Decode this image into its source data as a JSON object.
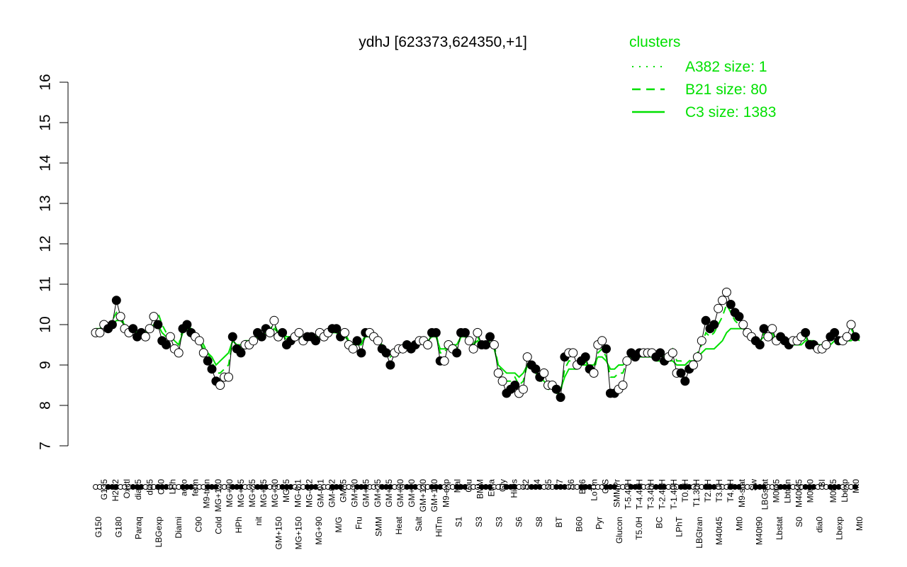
{
  "chart_data": {
    "type": "line",
    "title": "ydhJ [623373,624350,+1]",
    "ylim": [
      7,
      16
    ],
    "y_ticks": [
      7,
      8,
      9,
      10,
      11,
      12,
      13,
      14,
      15,
      16
    ],
    "x_labels_top": [
      "G135",
      "H2O2",
      "Oxctl",
      "dia15",
      "dia5",
      "C30",
      "LPh",
      "aero",
      "ferm",
      "M9-tran",
      "MG+120",
      "MG+60",
      "MG+45",
      "MG+25",
      "MG+15",
      "MG+10",
      "MG+5",
      "MG-0.1",
      "MG-0.2",
      "GM-0.1",
      "GM-0.2",
      "GM+5",
      "GM+10",
      "GM+15",
      "GM+25",
      "GM+45",
      "GM+60",
      "GM+90",
      "GM+120",
      "GM+150",
      "M9-exp",
      "Mal",
      "Glu",
      "BMM",
      "Etha",
      "Gly",
      "HiOs",
      "S2",
      "S4",
      "S5",
      "S7",
      "S6",
      "B36",
      "LoTm",
      "G/S",
      "SMMPr",
      "T-5.40H",
      "T-4.40H",
      "T-3.40H",
      "T-2.40H",
      "T-1.40H",
      "T0.0H",
      "T1.30H",
      "T2.0H",
      "T3.0H",
      "T4.0H",
      "M9-stat",
      "Sw",
      "LBGstat",
      "M0t45",
      "Lbtran",
      "M40t45",
      "M0t90",
      "BI",
      "M0t45",
      "Lbexp",
      "Mt0"
    ],
    "x_labels_bottom": [
      "G150",
      "G180",
      "Paraq",
      "LBGexp",
      "Diami",
      "C90",
      "Cold",
      "HPh",
      "nit",
      "GM+150",
      "MG+150",
      "MG+90",
      "M/G",
      "Fru",
      "SMM",
      "Heat",
      "Salt",
      "HiTm",
      "S1",
      "S3",
      "S3",
      "S6",
      "S8",
      "BT",
      "B60",
      "Pyr",
      "Glucon",
      "T5.0H",
      "BC",
      "LPhT",
      "LBGtran",
      "M40t45",
      "Mt0",
      "M40t90",
      "Lbstat",
      "S0",
      "dia0",
      "Lbexp",
      "Mt0"
    ],
    "series": [
      {
        "name": "",
        "values": [
          9.8,
          9.8,
          10.0,
          9.9,
          10.0,
          10.6,
          10.2,
          9.9,
          9.8,
          9.9,
          9.7,
          9.8,
          9.7,
          9.9,
          10.2,
          10.0,
          9.6,
          9.5,
          9.7,
          9.4,
          9.3,
          9.9,
          10.0,
          9.8,
          9.7,
          9.6,
          9.3,
          9.1,
          8.9,
          8.6,
          8.5,
          8.7,
          8.7,
          9.7,
          9.4,
          9.3,
          9.5,
          9.5,
          9.6,
          9.8,
          9.7,
          9.9,
          9.8,
          10.1,
          9.7,
          9.8,
          9.5,
          9.6,
          9.7,
          9.8,
          9.6,
          9.7,
          9.7,
          9.6,
          9.8,
          9.7,
          9.8,
          9.9,
          9.9,
          9.7,
          9.8,
          9.5,
          9.4,
          9.6,
          9.3,
          9.8,
          9.8,
          9.7,
          9.6,
          9.4,
          9.3,
          9.0,
          9.3,
          9.4,
          9.4,
          9.5,
          9.4,
          9.5,
          9.6,
          9.6,
          9.5,
          9.8,
          9.8,
          9.1,
          9.1,
          9.5,
          9.4,
          9.3,
          9.8,
          9.8,
          9.6,
          9.4,
          9.8,
          9.5,
          9.5,
          9.7,
          9.5,
          8.8,
          8.6,
          8.3,
          8.4,
          8.5,
          8.3,
          8.4,
          9.2,
          9.0,
          8.9,
          8.7,
          8.8,
          8.5,
          8.5,
          8.4,
          8.2,
          9.2,
          9.3,
          9.3,
          9.0,
          9.1,
          9.2,
          8.9,
          8.8,
          9.5,
          9.6,
          9.4,
          8.3,
          8.3,
          8.4,
          8.5,
          9.1,
          9.3,
          9.2,
          9.3,
          9.3,
          9.3,
          9.3,
          9.2,
          9.3,
          9.1,
          9.2,
          9.3,
          8.8,
          8.8,
          8.6,
          8.9,
          9.0,
          9.2,
          9.6,
          10.1,
          9.9,
          10.0,
          10.4,
          10.6,
          10.8,
          10.5,
          10.3,
          10.2,
          10.0,
          9.8,
          9.7,
          9.6,
          9.5,
          9.9,
          9.7,
          9.9,
          9.6,
          9.7,
          9.6,
          9.5,
          9.6,
          9.6,
          9.7,
          9.8,
          9.5,
          9.5,
          9.4,
          9.4,
          9.5,
          9.7,
          9.8,
          9.6,
          9.6,
          9.7,
          10.0,
          9.7
        ]
      },
      {
        "name": "C3 size: 1383",
        "values": [
          9.9,
          9.9,
          10.0,
          10.0,
          10.0,
          10.1,
          10.1,
          10.0,
          9.9,
          9.9,
          9.8,
          9.8,
          9.8,
          9.9,
          10.0,
          10.0,
          9.8,
          9.7,
          9.7,
          9.6,
          9.5,
          9.8,
          9.9,
          9.8,
          9.7,
          9.6,
          9.4,
          9.3,
          9.2,
          9.0,
          9.1,
          9.2,
          9.3,
          9.6,
          9.5,
          9.5,
          9.6,
          9.6,
          9.6,
          9.7,
          9.7,
          9.8,
          9.8,
          9.9,
          9.8,
          9.8,
          9.7,
          9.7,
          9.7,
          9.7,
          9.6,
          9.6,
          9.7,
          9.7,
          9.7,
          9.7,
          9.7,
          9.8,
          9.8,
          9.7,
          9.7,
          9.6,
          9.5,
          9.5,
          9.5,
          9.7,
          9.7,
          9.7,
          9.6,
          9.5,
          9.4,
          9.3,
          9.4,
          9.4,
          9.5,
          9.5,
          9.5,
          9.5,
          9.6,
          9.6,
          9.6,
          9.7,
          9.7,
          9.4,
          9.4,
          9.5,
          9.5,
          9.5,
          9.7,
          9.7,
          9.6,
          9.5,
          9.6,
          9.5,
          9.5,
          9.5,
          9.4,
          9.0,
          8.9,
          8.8,
          8.8,
          8.8,
          8.7,
          8.8,
          9.0,
          8.9,
          8.8,
          8.7,
          8.6,
          8.5,
          8.5,
          8.4,
          8.4,
          8.7,
          8.9,
          8.9,
          8.9,
          9.0,
          9.0,
          9.0,
          9.0,
          9.2,
          9.2,
          9.1,
          8.9,
          8.9,
          9.0,
          9.0,
          9.1,
          9.2,
          9.2,
          9.2,
          9.2,
          9.2,
          9.2,
          9.1,
          9.1,
          9.1,
          9.1,
          9.1,
          9.0,
          9.0,
          9.0,
          9.1,
          9.1,
          9.2,
          9.3,
          9.4,
          9.4,
          9.4,
          9.5,
          9.6,
          9.8,
          9.9,
          9.9,
          9.9,
          9.9,
          9.8,
          9.7,
          9.6,
          9.6,
          9.7,
          9.7,
          9.7,
          9.6,
          9.6,
          9.6,
          9.5,
          9.5,
          9.5,
          9.5,
          9.6,
          9.6,
          9.6,
          9.5,
          9.5,
          9.5,
          9.5,
          9.6,
          9.6,
          9.6,
          9.6,
          9.6,
          9.7,
          9.6
        ]
      },
      {
        "name": "B21 size: 80",
        "values": [
          9.8,
          9.9,
          10.0,
          10.0,
          10.1,
          10.3,
          10.2,
          10.0,
          9.9,
          9.9,
          9.8,
          9.8,
          9.8,
          9.9,
          10.2,
          10.3,
          10.0,
          9.8,
          9.8,
          9.6,
          9.5,
          9.9,
          10.0,
          9.9,
          9.8,
          9.7,
          9.5,
          9.3,
          9.1,
          8.8,
          8.8,
          8.9,
          9.0,
          9.6,
          9.5,
          9.4,
          9.5,
          9.6,
          9.6,
          9.8,
          9.8,
          9.9,
          9.9,
          10.0,
          9.8,
          9.8,
          9.6,
          9.7,
          9.7,
          9.8,
          9.6,
          9.7,
          9.7,
          9.7,
          9.8,
          9.8,
          9.8,
          9.9,
          9.9,
          9.8,
          9.8,
          9.6,
          9.5,
          9.6,
          9.5,
          9.8,
          9.8,
          9.7,
          9.6,
          9.5,
          9.4,
          9.2,
          9.3,
          9.4,
          9.4,
          9.5,
          9.5,
          9.5,
          9.6,
          9.6,
          9.6,
          9.8,
          9.8,
          9.3,
          9.3,
          9.5,
          9.5,
          9.4,
          9.7,
          9.8,
          9.6,
          9.5,
          9.7,
          9.5,
          9.5,
          9.6,
          9.5,
          9.0,
          8.8,
          8.6,
          8.6,
          8.7,
          8.5,
          8.6,
          9.0,
          8.9,
          8.8,
          8.6,
          8.6,
          8.4,
          8.4,
          8.3,
          8.3,
          8.9,
          9.1,
          9.1,
          9.0,
          9.0,
          9.1,
          8.9,
          8.8,
          9.3,
          9.4,
          9.2,
          8.7,
          8.7,
          8.8,
          8.8,
          9.1,
          9.3,
          9.3,
          9.3,
          9.3,
          9.3,
          9.3,
          9.2,
          9.3,
          9.2,
          9.3,
          9.4,
          9.1,
          9.1,
          9.0,
          9.1,
          9.2,
          9.3,
          9.5,
          9.8,
          9.7,
          9.8,
          10.0,
          10.2,
          10.5,
          10.3,
          10.1,
          10.0,
          9.9,
          9.8,
          9.7,
          9.6,
          9.5,
          9.8,
          9.7,
          9.8,
          9.6,
          9.7,
          9.6,
          9.5,
          9.6,
          9.6,
          9.7,
          9.7,
          9.5,
          9.5,
          9.4,
          9.4,
          9.5,
          9.7,
          9.8,
          9.6,
          9.6,
          9.7,
          9.9,
          9.7
        ]
      }
    ],
    "legend": {
      "title": "clusters",
      "position": "top-right",
      "entries": [
        {
          "label": "A382 size: 1",
          "style": "dotted"
        },
        {
          "label": "B21 size: 80",
          "style": "dashed"
        },
        {
          "label": "C3 size: 1383",
          "style": "solid"
        }
      ]
    },
    "colors": {
      "cluster": "#00e000",
      "data": "#000000"
    },
    "grid": false
  }
}
